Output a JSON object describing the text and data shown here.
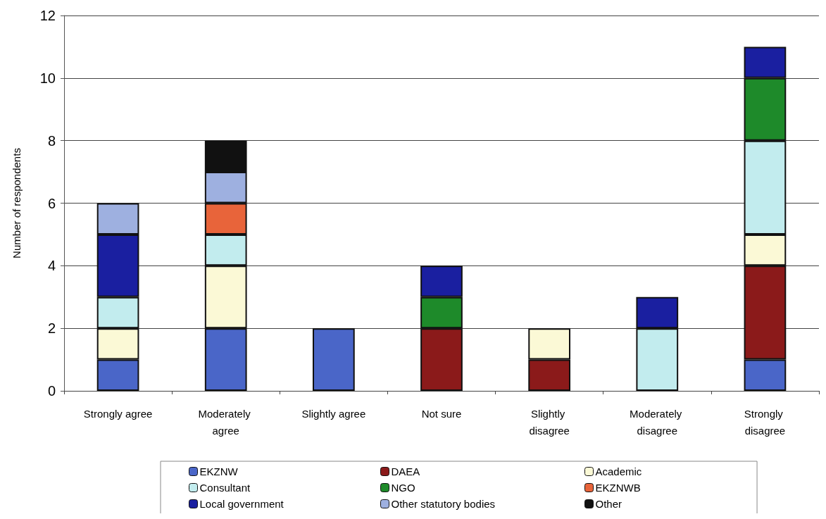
{
  "chart_data": {
    "type": "bar",
    "stacked": true,
    "ylabel": "Number of respondents",
    "categories": [
      "Strongly agree",
      "Moderately agree",
      "Slightly agree",
      "Not sure",
      "Slightly disagree",
      "Moderately disagree",
      "Strongly disagree"
    ],
    "series": [
      {
        "name": "EKZNW",
        "color": "#4a66c8",
        "values": [
          1,
          2,
          2,
          null,
          null,
          null,
          1
        ]
      },
      {
        "name": "DAEA",
        "color": "#8b1a1a",
        "values": [
          null,
          null,
          null,
          2,
          1,
          null,
          3
        ]
      },
      {
        "name": "Academic",
        "color": "#fbf9d6",
        "values": [
          1,
          2,
          null,
          null,
          1,
          null,
          1
        ]
      },
      {
        "name": "Consultant",
        "color": "#c2ecee",
        "values": [
          1,
          1,
          null,
          null,
          null,
          2,
          3
        ]
      },
      {
        "name": "NGO",
        "color": "#1e8a2a",
        "values": [
          null,
          null,
          null,
          1,
          null,
          null,
          2
        ]
      },
      {
        "name": "EKZNWB",
        "color": "#e8643a",
        "values": [
          null,
          1,
          null,
          null,
          null,
          null,
          null
        ]
      },
      {
        "name": "Local government",
        "color": "#1a1fa0",
        "values": [
          2,
          null,
          null,
          1,
          null,
          1,
          1
        ]
      },
      {
        "name": "Other statutory bodies",
        "color": "#9eb0e0",
        "values": [
          1,
          1,
          null,
          null,
          null,
          null,
          null
        ]
      },
      {
        "name": "Other",
        "color": "#111111",
        "values": [
          null,
          1,
          null,
          null,
          null,
          null,
          null
        ]
      }
    ],
    "ylim": [
      0,
      12
    ],
    "yticks": [
      0,
      2,
      4,
      6,
      8,
      10,
      12
    ],
    "grid": "y",
    "legend": "bottom"
  }
}
